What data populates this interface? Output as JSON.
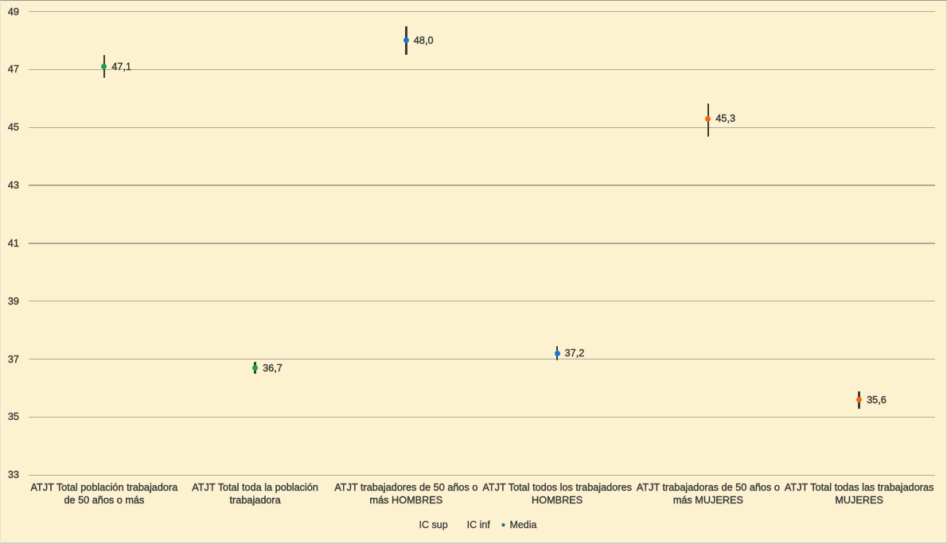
{
  "chart_data": {
    "type": "scatter",
    "title": "",
    "categories": [
      "ATJT Total población trabajadora de 50 años o más",
      "ATJT Total toda la población trabajadora",
      "ATJT trabajadores de 50 años o más HOMBRES",
      "ATJT Total todos los trabajadores HOMBRES",
      "ATJT trabajadoras de 50 años o más MUJERES",
      "ATJT Total todas las trabajadoras MUJERES"
    ],
    "category_lines": [
      [
        "ATJT Total población trabajadora",
        "de 50 años o más"
      ],
      [
        "ATJT Total toda la población",
        "trabajadora"
      ],
      [
        "ATJT trabajadores de 50 años o",
        "más HOMBRES"
      ],
      [
        "ATJT Total todos los trabajadores",
        "HOMBRES"
      ],
      [
        "ATJT trabajadoras de 50 años o",
        "más MUJERES"
      ],
      [
        "ATJT Total todas las trabajadoras",
        "MUJERES"
      ]
    ],
    "series": [
      {
        "name": "IC sup",
        "values": [
          47.5,
          36.9,
          48.5,
          37.45,
          45.82,
          35.9
        ]
      },
      {
        "name": "IC inf",
        "values": [
          46.7,
          36.5,
          47.5,
          36.95,
          44.68,
          35.3
        ]
      },
      {
        "name": "Media",
        "values": [
          47.1,
          36.7,
          48.0,
          37.2,
          45.3,
          35.6
        ],
        "labels": [
          "47,1",
          "36,7",
          "48,0",
          "37,2",
          "45,3",
          "35,6"
        ]
      }
    ],
    "point_colors": [
      "#17A24B",
      "#17A24B",
      "#1577D2",
      "#1577D2",
      "#F2690D",
      "#F2690D"
    ],
    "ylim": [
      33,
      49
    ],
    "ytick_step": 2,
    "yticks": [
      49,
      47,
      45,
      43,
      41,
      39,
      37,
      35,
      33
    ],
    "grid": true,
    "legend_position": "bottom"
  },
  "legend": {
    "items": [
      {
        "label": "IC sup",
        "marker": "none"
      },
      {
        "label": "IC inf",
        "marker": "none"
      },
      {
        "label": "Media",
        "marker": "dot",
        "marker_color": "#2B5F8E"
      }
    ]
  },
  "colors": {
    "background": "#FCF2CF",
    "gridline": "#B2AE9E",
    "error_bar": "#3C3C38",
    "text": "#3A3A3A"
  }
}
